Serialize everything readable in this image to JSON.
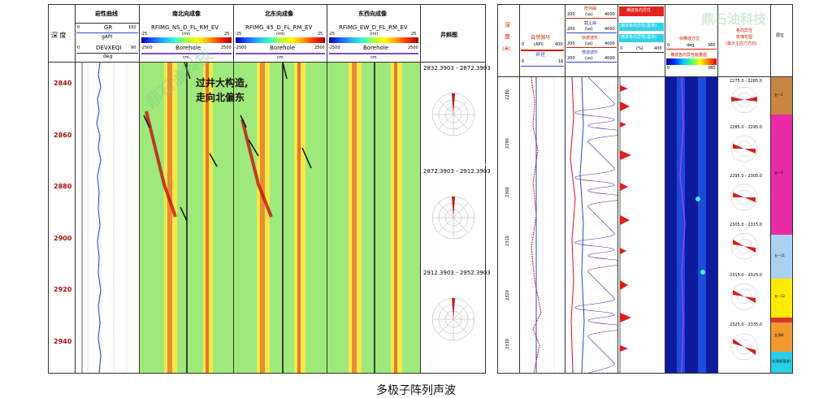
{
  "left": {
    "headers": {
      "depth_label": "深 度",
      "lith_title": "岩性曲线",
      "ns_title": "南北向成像",
      "ne_title": "北东向成像",
      "ew_title": "东西向成像",
      "rose_title": "井斜图"
    },
    "gr_track": {
      "gr_name": "GR",
      "gr_min": "0",
      "gr_max": "150",
      "gr_unit": "gAPI",
      "dev_name": "DEVXEQI",
      "dev_min": "0",
      "dev_max": "90",
      "dev_unit": "deg"
    },
    "image_tracks": [
      {
        "curve": "RFIMG_NS_D_FL_RM_EV",
        "unit": "(ml)",
        "scale_min": "-25",
        "scale_max": "25",
        "bh_min": "-2500",
        "bh_label": "Borehole",
        "bh_max": "2500",
        "bh_unit": "cm"
      },
      {
        "curve": "RFIMG_45_D_FL_RM_EV",
        "unit": "(ml)",
        "scale_min": "-25",
        "scale_max": "25",
        "bh_min": "-2500",
        "bh_label": "Borehole",
        "bh_max": "2500",
        "bh_unit": "cm"
      },
      {
        "curve": "RFIMG_EW_D_FL_RM_EV",
        "unit": "(ml)",
        "scale_min": "-25",
        "scale_max": "25",
        "bh_min": "-2500",
        "bh_label": "Borehole",
        "bh_max": "2500",
        "bh_unit": "cm"
      }
    ],
    "depths": [
      "2840",
      "2860",
      "2880",
      "2900",
      "2920",
      "2940"
    ],
    "annotation_line1": "过井大构造,",
    "annotation_line2": "走向北偏东",
    "roses": [
      {
        "range": "2832.3903 - 2872.3903",
        "labels": [
          "360",
          "0",
          "30",
          "60",
          "90",
          "120",
          "150",
          "180",
          "210",
          "240",
          "270",
          "300",
          "330"
        ]
      },
      {
        "range": "2872.3903 - 2912.3903",
        "labels": [
          "360",
          "0",
          "30",
          "60",
          "90",
          "120",
          "150",
          "180",
          "210",
          "240",
          "270",
          "300",
          "330"
        ]
      },
      {
        "range": "2912.3903 - 2952.3903",
        "labels": [
          "360",
          "0",
          "30",
          "60",
          "90",
          "120",
          "150",
          "180",
          "210",
          "240",
          "270",
          "300",
          "330"
        ]
      }
    ]
  },
  "right": {
    "depth_label_1": "深",
    "depth_label_2": "度",
    "depth_label_3": "(米)",
    "gr_title": "自然伽马",
    "gr_unit": "(API)",
    "gr_min": "0",
    "gr_max": "400",
    "cal_title": "井径",
    "cal_min": "6",
    "cal_max": "16",
    "wave_titles": [
      {
        "name": "阵列曲",
        "unit": "(us)",
        "min": "200",
        "max": "4000"
      },
      {
        "name": "截止曲",
        "unit": "(us)",
        "min": "200",
        "max": "4000"
      },
      {
        "name": "快波波形",
        "unit": "(us)",
        "min": "200",
        "max": "4000"
      },
      {
        "name": "慢波波形",
        "unit": "(us)",
        "min": "200",
        "max": "4000"
      }
    ],
    "aniso_title": "横波各向异性",
    "aniso_box1": "横波各向异性(基准)",
    "aniso_box2": "横波各向异性(基准)",
    "aniso_scale_min": "0",
    "aniso_scale_max": "400",
    "aniso_unit": "(%)",
    "fast_az_title": "快横波方位",
    "fast_az_unit": "deg",
    "fast_az_min": "0",
    "fast_az_max": "360",
    "energy_title": "横波各向异性能量图",
    "energy_min": "0",
    "energy_max": "360",
    "rose_title_1": "各向异性",
    "rose_title_2": "玫瑰花图",
    "rose_title_3": "(最大主应力方向)",
    "layer_title": "层位",
    "depths": [
      "2280",
      "2290",
      "2300",
      "2310",
      "2320",
      "2330"
    ],
    "roses": [
      {
        "range": "2275.0 - 2285.0"
      },
      {
        "range": "2285.0 - 2295.0"
      },
      {
        "range": "2295.0 - 2305.0"
      },
      {
        "range": "2305.0 - 2315.0"
      },
      {
        "range": "2315.0 - 2325.0"
      },
      {
        "range": "2325.0 - 2335.0"
      }
    ],
    "layers": [
      {
        "name": "五一2",
        "color": "#c88544"
      },
      {
        "name": "五一3",
        "color": "#ea2aa4"
      },
      {
        "name": "五一11",
        "color": "#aad2f0"
      },
      {
        "name": "五一12",
        "color": "#ffeb00"
      },
      {
        "name": "",
        "color": "#e03030"
      },
      {
        "name": "五顶砂",
        "color": "#f09a2e"
      },
      {
        "name": "五顶组(基准)",
        "color": "#2ccde6"
      }
    ]
  },
  "watermark": "鼎石油科技",
  "caption": "多极子阵列声波"
}
